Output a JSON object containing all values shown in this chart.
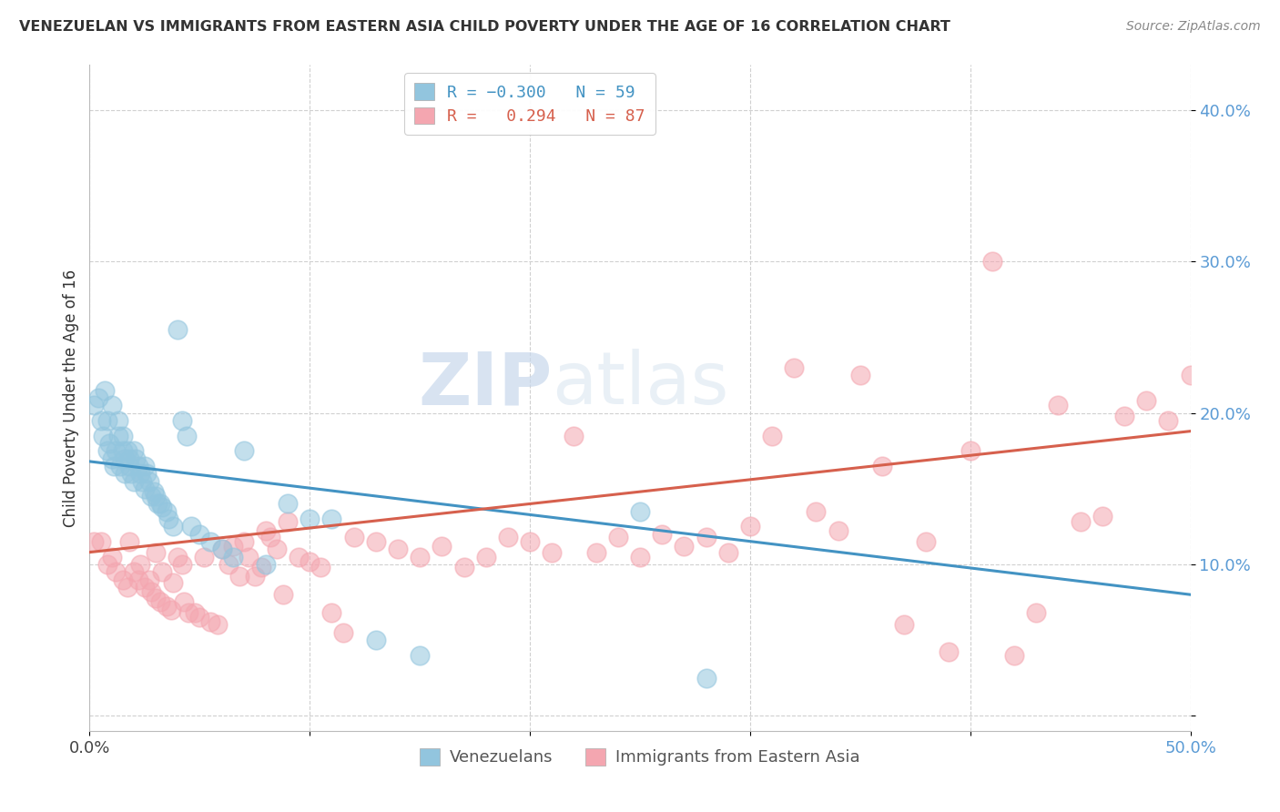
{
  "title": "VENEZUELAN VS IMMIGRANTS FROM EASTERN ASIA CHILD POVERTY UNDER THE AGE OF 16 CORRELATION CHART",
  "source": "Source: ZipAtlas.com",
  "ylabel": "Child Poverty Under the Age of 16",
  "yticks": [
    0.0,
    0.1,
    0.2,
    0.3,
    0.4
  ],
  "ytick_labels": [
    "",
    "10.0%",
    "20.0%",
    "30.0%",
    "40.0%"
  ],
  "xlim": [
    0.0,
    0.5
  ],
  "ylim": [
    -0.01,
    0.43
  ],
  "legend_label1": "Venezuelans",
  "legend_label2": "Immigrants from Eastern Asia",
  "blue_scatter_color": "#92c5de",
  "pink_scatter_color": "#f4a6b0",
  "blue_line_color": "#4393c3",
  "pink_line_color": "#d6604d",
  "watermark_zip": "ZIP",
  "watermark_atlas": "atlas",
  "venezuelan_x": [
    0.002,
    0.004,
    0.005,
    0.006,
    0.007,
    0.008,
    0.008,
    0.009,
    0.01,
    0.01,
    0.011,
    0.012,
    0.013,
    0.013,
    0.014,
    0.015,
    0.015,
    0.016,
    0.016,
    0.017,
    0.018,
    0.018,
    0.019,
    0.02,
    0.02,
    0.021,
    0.022,
    0.023,
    0.024,
    0.025,
    0.025,
    0.026,
    0.027,
    0.028,
    0.029,
    0.03,
    0.031,
    0.032,
    0.033,
    0.035,
    0.036,
    0.038,
    0.04,
    0.042,
    0.044,
    0.046,
    0.05,
    0.055,
    0.06,
    0.065,
    0.07,
    0.08,
    0.09,
    0.1,
    0.11,
    0.13,
    0.15,
    0.25,
    0.28
  ],
  "venezuelan_y": [
    0.205,
    0.21,
    0.195,
    0.185,
    0.215,
    0.175,
    0.195,
    0.18,
    0.17,
    0.205,
    0.165,
    0.175,
    0.195,
    0.185,
    0.165,
    0.185,
    0.175,
    0.17,
    0.16,
    0.175,
    0.165,
    0.17,
    0.16,
    0.175,
    0.155,
    0.17,
    0.165,
    0.16,
    0.155,
    0.165,
    0.15,
    0.16,
    0.155,
    0.145,
    0.148,
    0.145,
    0.14,
    0.14,
    0.138,
    0.135,
    0.13,
    0.125,
    0.255,
    0.195,
    0.185,
    0.125,
    0.12,
    0.115,
    0.11,
    0.105,
    0.175,
    0.1,
    0.14,
    0.13,
    0.13,
    0.05,
    0.04,
    0.135,
    0.025
  ],
  "eastern_asia_x": [
    0.002,
    0.005,
    0.008,
    0.01,
    0.012,
    0.015,
    0.017,
    0.018,
    0.02,
    0.022,
    0.023,
    0.025,
    0.027,
    0.028,
    0.03,
    0.03,
    0.032,
    0.033,
    0.035,
    0.037,
    0.038,
    0.04,
    0.042,
    0.043,
    0.045,
    0.048,
    0.05,
    0.052,
    0.055,
    0.058,
    0.06,
    0.063,
    0.065,
    0.068,
    0.07,
    0.072,
    0.075,
    0.078,
    0.08,
    0.082,
    0.085,
    0.088,
    0.09,
    0.095,
    0.1,
    0.105,
    0.11,
    0.115,
    0.12,
    0.13,
    0.14,
    0.15,
    0.16,
    0.17,
    0.18,
    0.19,
    0.2,
    0.21,
    0.22,
    0.23,
    0.24,
    0.25,
    0.26,
    0.27,
    0.28,
    0.29,
    0.3,
    0.32,
    0.34,
    0.36,
    0.37,
    0.38,
    0.39,
    0.4,
    0.42,
    0.43,
    0.44,
    0.45,
    0.46,
    0.47,
    0.48,
    0.49,
    0.5,
    0.41,
    0.35,
    0.33,
    0.31
  ],
  "eastern_asia_y": [
    0.115,
    0.115,
    0.1,
    0.105,
    0.095,
    0.09,
    0.085,
    0.115,
    0.095,
    0.09,
    0.1,
    0.085,
    0.09,
    0.082,
    0.108,
    0.078,
    0.075,
    0.095,
    0.072,
    0.07,
    0.088,
    0.105,
    0.1,
    0.075,
    0.068,
    0.068,
    0.065,
    0.105,
    0.062,
    0.06,
    0.11,
    0.1,
    0.112,
    0.092,
    0.115,
    0.105,
    0.092,
    0.098,
    0.122,
    0.118,
    0.11,
    0.08,
    0.128,
    0.105,
    0.102,
    0.098,
    0.068,
    0.055,
    0.118,
    0.115,
    0.11,
    0.105,
    0.112,
    0.098,
    0.105,
    0.118,
    0.115,
    0.108,
    0.185,
    0.108,
    0.118,
    0.105,
    0.12,
    0.112,
    0.118,
    0.108,
    0.125,
    0.23,
    0.122,
    0.165,
    0.06,
    0.115,
    0.042,
    0.175,
    0.04,
    0.068,
    0.205,
    0.128,
    0.132,
    0.198,
    0.208,
    0.195,
    0.225,
    0.3,
    0.225,
    0.135,
    0.185
  ],
  "blue_trendline_x0": 0.0,
  "blue_trendline_y0": 0.168,
  "blue_trendline_x1": 0.5,
  "blue_trendline_y1": 0.08,
  "pink_trendline_x0": 0.0,
  "pink_trendline_y0": 0.108,
  "pink_trendline_x1": 0.5,
  "pink_trendline_y1": 0.188
}
